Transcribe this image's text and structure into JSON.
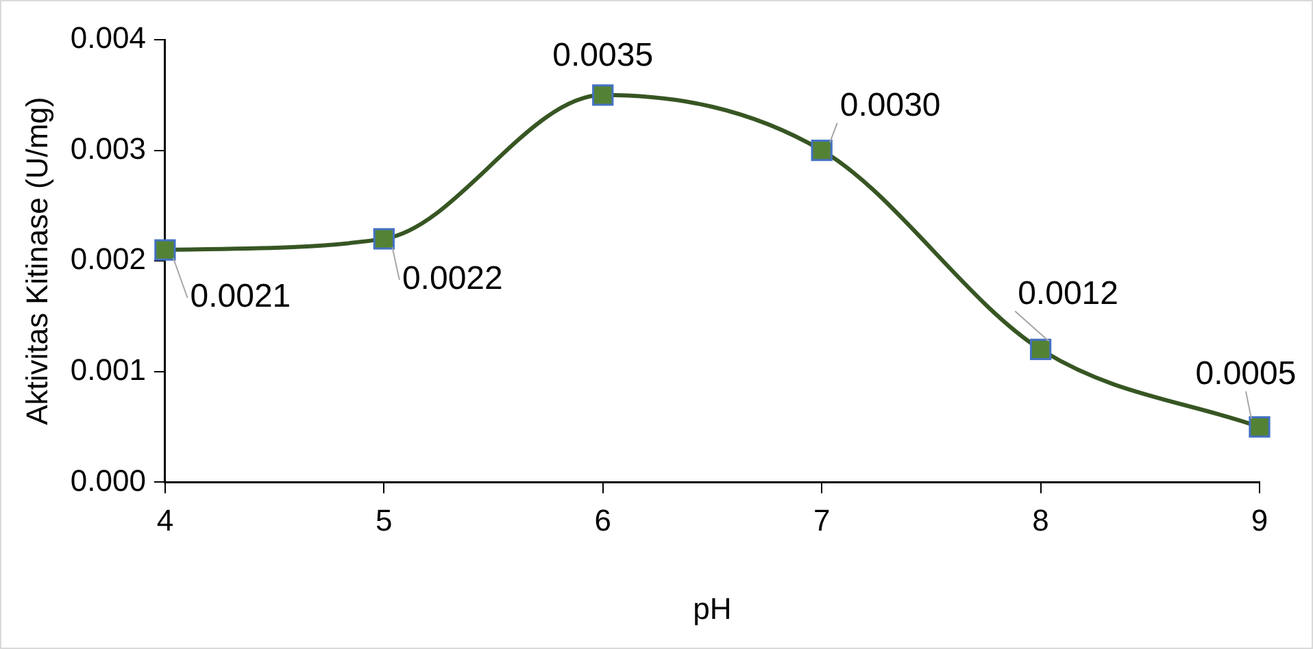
{
  "chart_data": {
    "type": "line",
    "xlabel": "pH",
    "ylabel": "Aktivitas Kitinase (U/mg)",
    "x": [
      4,
      5,
      6,
      7,
      8,
      9
    ],
    "series": [
      {
        "color": "#375623",
        "values": [
          0.0021,
          0.0022,
          0.0035,
          0.003,
          0.0012,
          0.0005
        ],
        "value_labels": [
          "0.0021",
          "0.0022",
          "0.0035",
          "0.0030",
          "0.0012",
          "0.0005"
        ]
      }
    ],
    "xlim": [
      4,
      9
    ],
    "xticks": [
      4,
      5,
      6,
      7,
      8,
      9
    ],
    "ylim": [
      0,
      0.004
    ],
    "yticks": [
      {
        "value": 0,
        "label": "0.000"
      },
      {
        "value": 0.001,
        "label": "0.001"
      },
      {
        "value": 0.002,
        "label": "0.002"
      },
      {
        "value": 0.003,
        "label": "0.003"
      },
      {
        "value": 0.004,
        "label": "0.004"
      }
    ],
    "grid": false,
    "legend": false,
    "marker": "square",
    "line_style": "solid"
  }
}
